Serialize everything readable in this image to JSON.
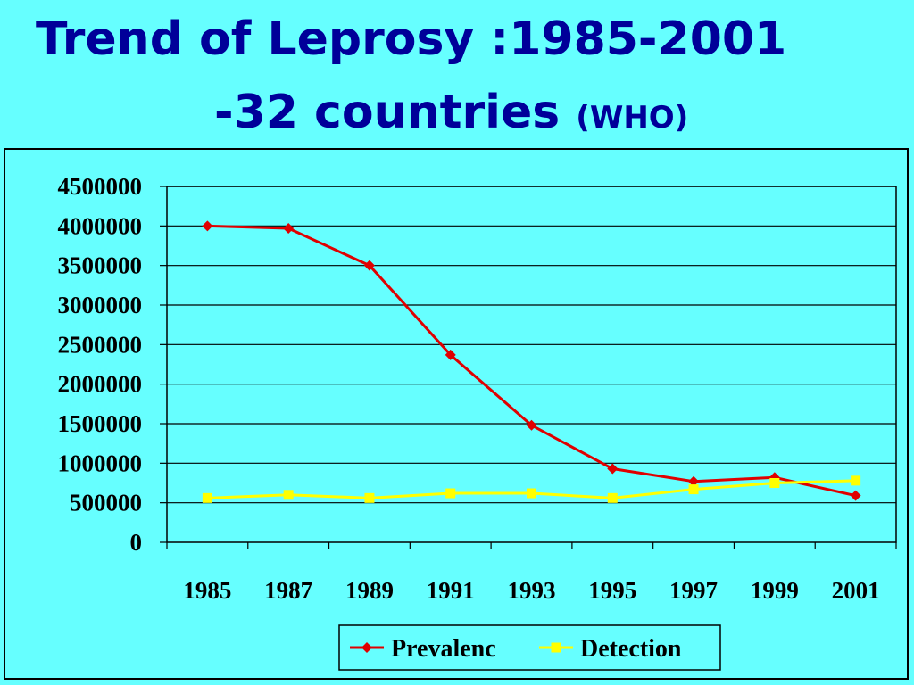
{
  "slide": {
    "title_line1": "Trend of Leprosy :1985-2001",
    "title_line2": "-32 countries ",
    "title_source": "(WHO)"
  },
  "colors": {
    "background": "#66FFFF",
    "title": "#000099",
    "prevalence": "#E00000",
    "detection": "#FFFF00"
  },
  "chart_data": {
    "type": "line",
    "categories": [
      "1985",
      "1987",
      "1989",
      "1991",
      "1993",
      "1995",
      "1997",
      "1999",
      "2001"
    ],
    "ylim": [
      0,
      4500000
    ],
    "yticks": [
      "0",
      "500000",
      "1000000",
      "1500000",
      "2000000",
      "2500000",
      "3000000",
      "3500000",
      "4000000",
      "4500000"
    ],
    "grid": true,
    "legend_position": "bottom",
    "series": [
      {
        "name": "Prevalenc",
        "marker": "diamond",
        "color": "#E00000",
        "values": [
          4000000,
          3970000,
          3500000,
          2370000,
          1480000,
          930000,
          770000,
          820000,
          590000
        ]
      },
      {
        "name": "Detection",
        "marker": "square",
        "color": "#FFFF00",
        "values": [
          560000,
          600000,
          560000,
          620000,
          620000,
          560000,
          670000,
          750000,
          780000
        ]
      }
    ]
  }
}
